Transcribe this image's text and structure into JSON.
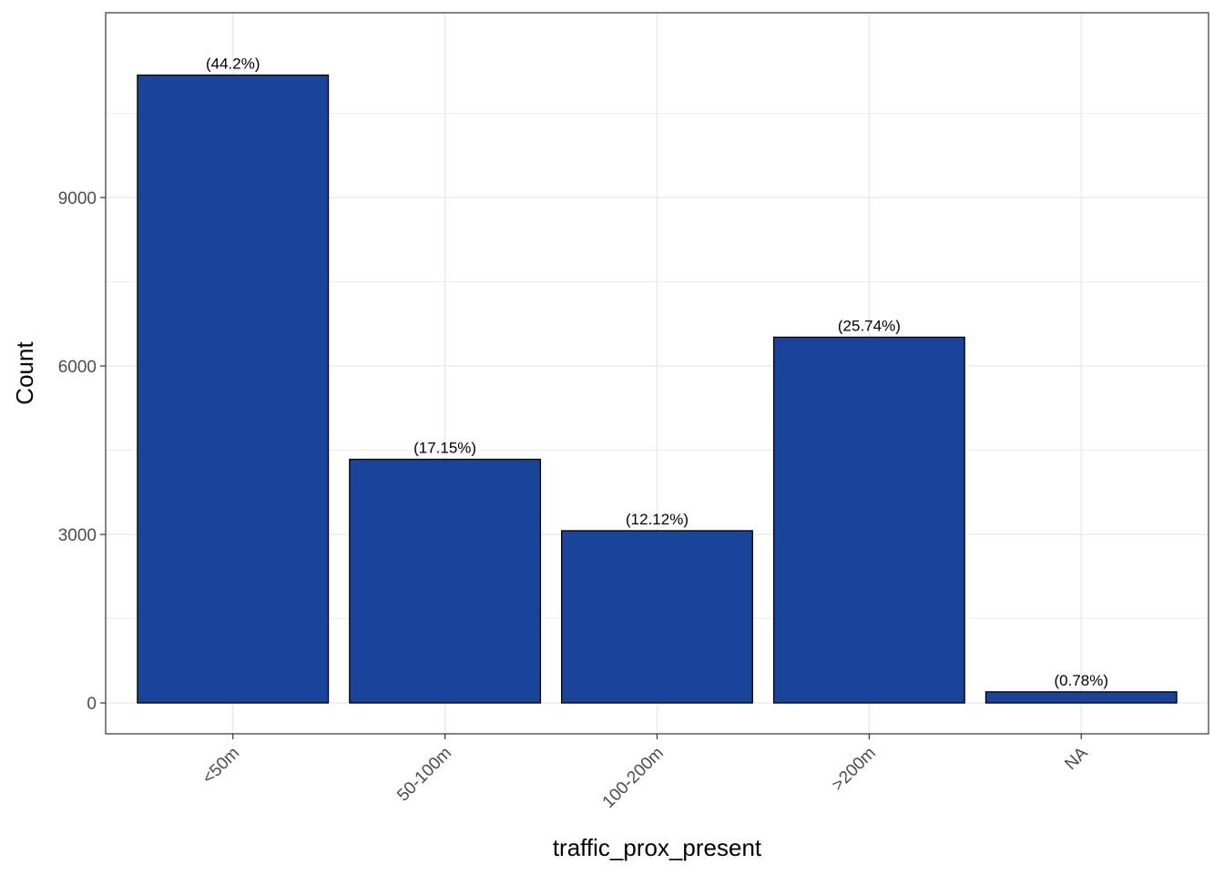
{
  "chart_data": {
    "type": "bar",
    "title": "",
    "xlabel": "traffic_prox_present",
    "ylabel": "Count",
    "categories": [
      "<50m",
      "50-100m",
      "100-200m",
      ">200m",
      "NA"
    ],
    "values": [
      11180,
      4338,
      3066,
      6512,
      197
    ],
    "data_labels": [
      "(44.2%)",
      "(17.15%)",
      "(12.12%)",
      "(25.74%)",
      "(0.78%)"
    ],
    "yticks": [
      0,
      3000,
      6000,
      9000
    ],
    "ylim": [
      -550,
      12290
    ],
    "grid": true,
    "legend": "none",
    "colors": {
      "bar_fill": "#1a4499",
      "bar_stroke": "#000000",
      "grid": "#ebebeb",
      "panel_border": "#333333"
    }
  }
}
